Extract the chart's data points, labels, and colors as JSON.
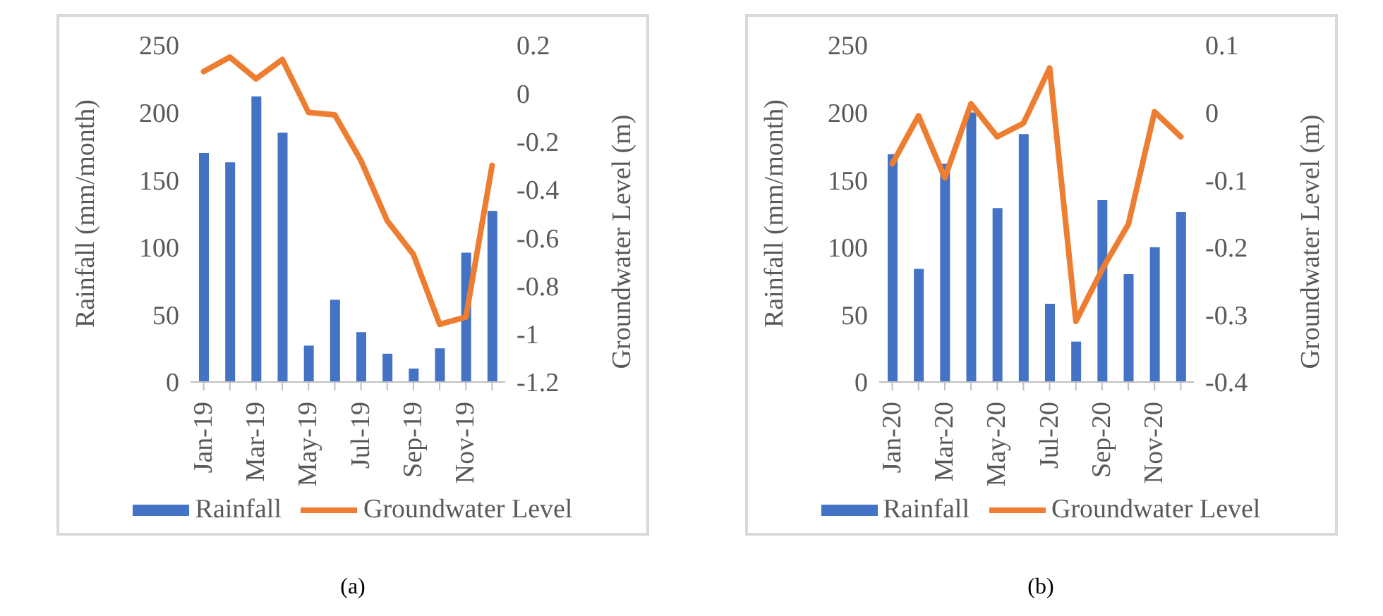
{
  "chart_data": [
    {
      "type": "bar",
      "categories": [
        "Jan-19",
        null,
        "Mar-19",
        null,
        "May-19",
        null,
        "Jul-19",
        null,
        "Sep-19",
        null,
        "Nov-19",
        null
      ],
      "ylabel": "Rainfall (mm/month)",
      "y2label": "Groundwater Level (m)",
      "ylim": [
        0,
        250
      ],
      "yticks": [
        0,
        50,
        100,
        150,
        200,
        250
      ],
      "y2lim": [
        -1.2,
        0.2
      ],
      "y2ticks": [
        -1.2,
        -1,
        -0.8,
        -0.6,
        -0.4,
        -0.2,
        0,
        0.2
      ],
      "grid": false,
      "legend": "bottom",
      "marker": "none",
      "annotations": [
        "(a)"
      ],
      "series": [
        {
          "name": "Rainfall",
          "color": "#4472c4",
          "values": [
            170,
            163,
            212,
            185,
            27,
            61,
            37,
            21,
            10,
            25,
            96,
            127
          ]
        },
        {
          "name": "Groundwater Level",
          "type": "line",
          "axis": "y2",
          "color": "#ed7d31",
          "values": [
            0.09,
            0.15,
            0.06,
            0.14,
            -0.08,
            -0.09,
            -0.28,
            -0.53,
            -0.67,
            -0.96,
            -0.93,
            -0.3
          ]
        }
      ]
    },
    {
      "type": "bar",
      "categories": [
        "Jan-20",
        null,
        "Mar-20",
        null,
        "May-20",
        null,
        "Jul-20",
        null,
        "Sep-20",
        null,
        "Nov-20",
        null
      ],
      "ylabel": "Rainfall (mm/month)",
      "y2label": "Groundwater Level (m)",
      "ylim": [
        0,
        250
      ],
      "yticks": [
        0,
        50,
        100,
        150,
        200,
        250
      ],
      "y2lim": [
        -0.4,
        0.1
      ],
      "y2ticks": [
        -0.4,
        -0.3,
        -0.2,
        -0.1,
        0,
        0.1
      ],
      "grid": false,
      "legend": "bottom",
      "marker": "none",
      "annotations": [
        "(b)"
      ],
      "series": [
        {
          "name": "Rainfall",
          "color": "#4472c4",
          "values": [
            169,
            84,
            162,
            200,
            129,
            184,
            58,
            30,
            135,
            80,
            100,
            126
          ]
        },
        {
          "name": "Groundwater Level",
          "type": "line",
          "axis": "y2",
          "color": "#ed7d31",
          "values": [
            -0.076,
            -0.005,
            -0.097,
            0.013,
            -0.036,
            -0.016,
            0.066,
            -0.31,
            -0.233,
            -0.166,
            0.001,
            -0.036
          ]
        }
      ]
    }
  ]
}
